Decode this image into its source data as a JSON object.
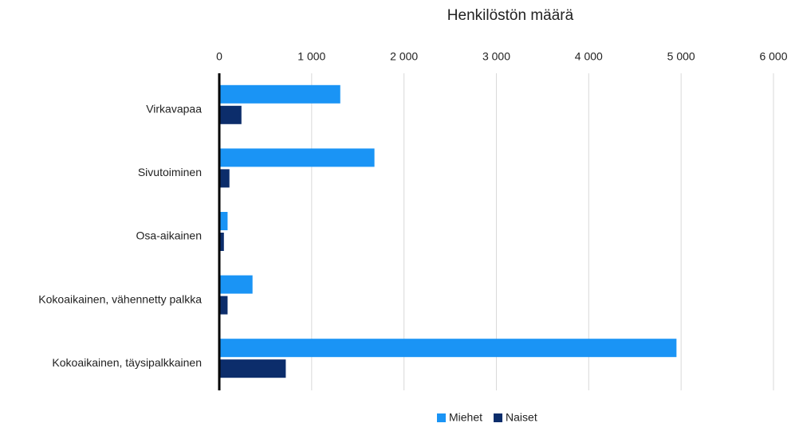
{
  "chart_data": {
    "type": "hbar",
    "title": "Henkilöstön määrä",
    "categories": [
      "Virkavapaa",
      "Sivutoiminen",
      "Osa-aikainen",
      "Kokoaikainen, vähennetty palkka",
      "Kokoaikainen, täysipalkkainen"
    ],
    "series": [
      {
        "name": "Miehet",
        "color": "#1a94f5",
        "values": [
          1310,
          1680,
          90,
          360,
          4950
        ]
      },
      {
        "name": "Naiset",
        "color": "#0c2d6b",
        "values": [
          240,
          110,
          50,
          90,
          720
        ]
      }
    ],
    "xlim": [
      0,
      6000
    ],
    "xticks": [
      0,
      {
        "value": 1000,
        "label": "1 000"
      },
      {
        "value": 2000,
        "label": "2 000"
      },
      {
        "value": 3000,
        "label": "3 000"
      },
      {
        "value": 4000,
        "label": "4 000"
      },
      {
        "value": 5000,
        "label": "5 000"
      },
      {
        "value": 6000,
        "label": "6 000"
      }
    ],
    "grid": true,
    "legend": "bottom"
  }
}
